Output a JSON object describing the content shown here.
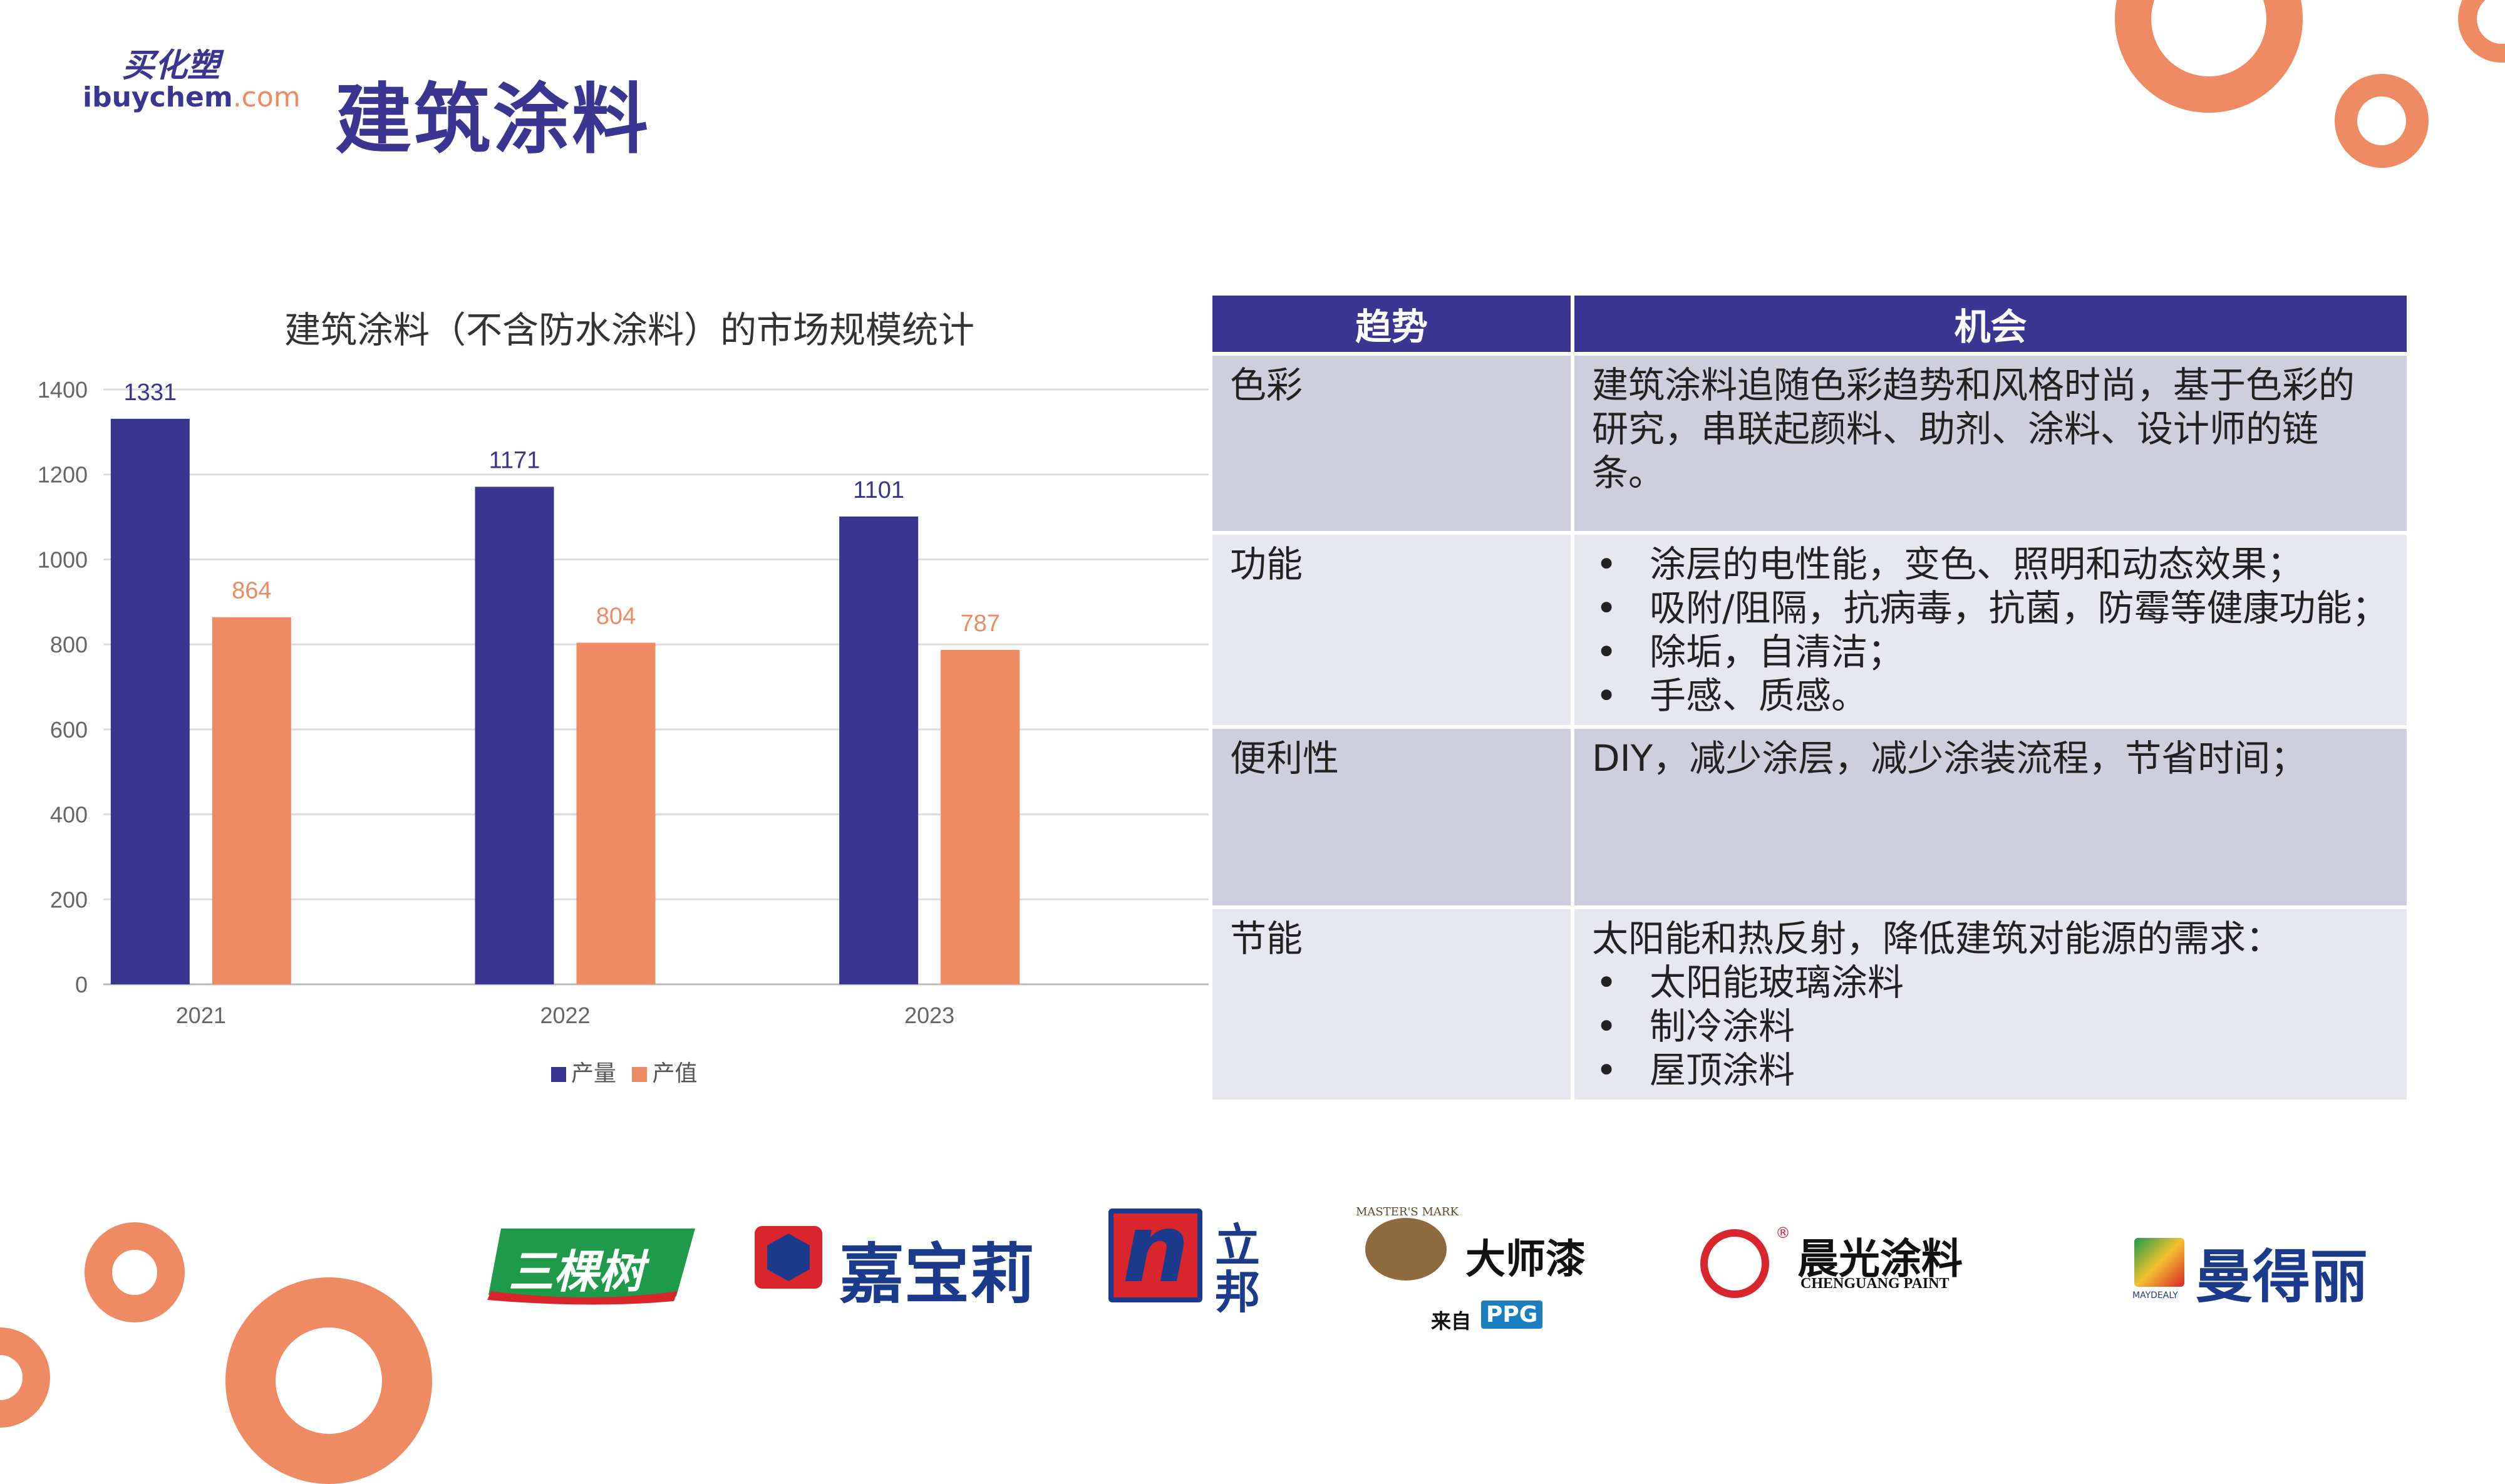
{
  "header": {
    "logo_cn": "买化塑",
    "logo_en": "ibuychem",
    "logo_domain": ".com",
    "title": "建筑涂料"
  },
  "chart_data": {
    "type": "bar",
    "title": "建筑涂料（不含防水涂料）的市场规模统计",
    "categories": [
      "2021",
      "2022",
      "2023"
    ],
    "series": [
      {
        "name": "产量",
        "values": [
          1331,
          1171,
          1101
        ],
        "color": "#3B3592"
      },
      {
        "name": "产值",
        "values": [
          864,
          804,
          787
        ],
        "color": "#EE8A64"
      }
    ],
    "ylim": [
      0,
      1400
    ],
    "yticks": [
      "0",
      "200",
      "400",
      "600",
      "800",
      "1000",
      "1200",
      "1400"
    ],
    "grid": true,
    "legend": "bottom"
  },
  "table": {
    "headers": [
      "趋势",
      "机会"
    ],
    "rows": [
      {
        "trend": "色彩",
        "text": "建筑涂料追随色彩趋势和风格时尚，基于色彩的研究，串联起颜料、助剂、涂料、设计师的链条。",
        "bullets": []
      },
      {
        "trend": "功能",
        "text": "",
        "bullets": [
          "涂层的电性能，变色、照明和动态效果；",
          "吸附/阻隔，抗病毒，抗菌，防霉等健康功能；",
          "除垢，自清洁；",
          "手感、质感。"
        ]
      },
      {
        "trend": "便利性",
        "text": "DIY，减少涂层，减少涂装流程，节省时间；",
        "bullets": []
      },
      {
        "trend": "节能",
        "text": "太阳能和热反射，降低建筑对能源的需求：",
        "bullets": [
          "太阳能玻璃涂料",
          "制冷涂料",
          "屋顶涂料"
        ]
      }
    ]
  },
  "brands": {
    "sankeshu": "三棵树",
    "jiabaoli": "嘉宝莉",
    "nippon_cn1": "立",
    "nippon_cn2": "邦",
    "nippon_n": "n",
    "dashiqi": "大师漆",
    "dashiqi_from": "来自",
    "ppg": "PPG",
    "masters_mark": "MASTER'S MARK",
    "chenguang_cn": "晨光涂料",
    "chenguang_en": "CHENGUANG PAINT",
    "maydeli": "曼得丽",
    "maydeli_en": "MAYDEALY"
  },
  "colors": {
    "primary": "#3B3592",
    "accent": "#EE8A64"
  }
}
